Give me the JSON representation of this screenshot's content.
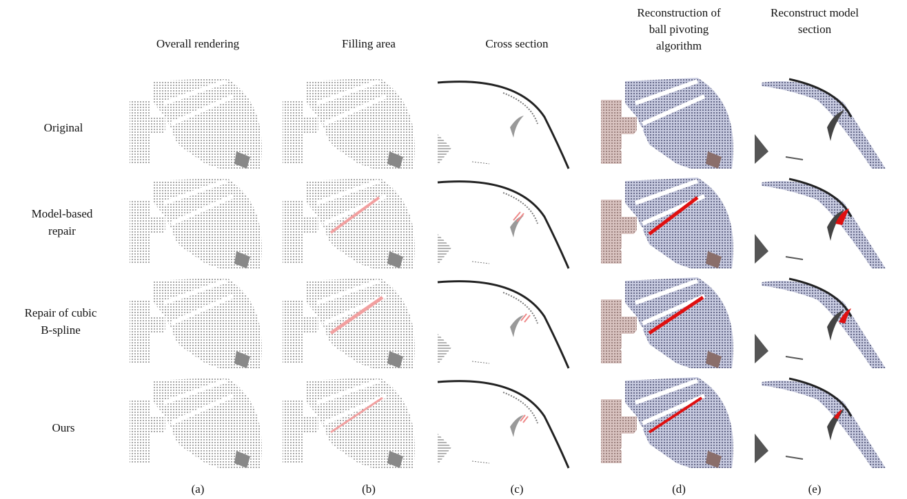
{
  "columns": [
    {
      "title": [
        "Overall rendering"
      ],
      "label": "(a)"
    },
    {
      "title": [
        "Filling area"
      ],
      "label": "(b)"
    },
    {
      "title": [
        "Cross section"
      ],
      "label": "(c)"
    },
    {
      "title": [
        "Reconstruction of",
        "ball pivoting",
        "algorithm"
      ],
      "label": "(d)"
    },
    {
      "title": [
        "Reconstruct model",
        "section"
      ],
      "label": "(e)"
    }
  ],
  "rows": [
    [
      "Original"
    ],
    [
      "Model-based",
      "repair"
    ],
    [
      "Repair of cubic",
      "B-spline"
    ],
    [
      "Ours"
    ]
  ]
}
